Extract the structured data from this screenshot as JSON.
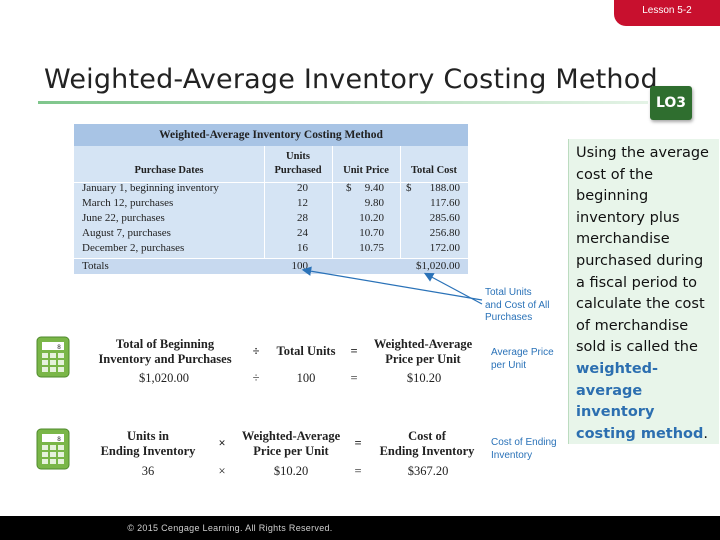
{
  "header": {
    "lesson_tab": "Lesson 5-2",
    "title": "Weighted-Average Inventory Costing Method",
    "lo_badge": "LO3"
  },
  "table": {
    "title": "Weighted-Average Inventory Costing Method",
    "headers": {
      "dates": "Purchase Dates",
      "units_line1": "Units",
      "units_line2": "Purchased",
      "price": "Unit Price",
      "total": "Total Cost"
    },
    "rows": [
      {
        "date": "January 1, beginning inventory",
        "units": "20",
        "dollar1": "$",
        "price": "9.40",
        "dollar2": "$",
        "total": "188.00"
      },
      {
        "date": "March 12, purchases",
        "units": "12",
        "dollar1": "",
        "price": "9.80",
        "dollar2": "",
        "total": "117.60"
      },
      {
        "date": "June 22, purchases",
        "units": "28",
        "dollar1": "",
        "price": "10.20",
        "dollar2": "",
        "total": "285.60"
      },
      {
        "date": "August 7, purchases",
        "units": "24",
        "dollar1": "",
        "price": "10.70",
        "dollar2": "",
        "total": "256.80"
      },
      {
        "date": "December 2, purchases",
        "units": "16",
        "dollar1": "",
        "price": "10.75",
        "dollar2": "",
        "total": "172.00"
      }
    ],
    "totals": {
      "label": "Totals",
      "units": "100",
      "total": "$1,020.00"
    }
  },
  "notes": {
    "total_units": [
      "Total Units",
      "and Cost of All",
      "Purchases"
    ],
    "avg_price": [
      "Average Price",
      "per Unit"
    ],
    "cost_ending": [
      "Cost of Ending",
      "Inventory"
    ]
  },
  "formula1": {
    "term1": [
      "Total of Beginning",
      "Inventory and Purchases"
    ],
    "op": "÷",
    "term2": "Total Units",
    "eq": "=",
    "result": [
      "Weighted-Average",
      "Price per Unit"
    ],
    "v1": "$1,020.00",
    "vop": "÷",
    "v2": "100",
    "veq": "=",
    "vres": "$10.20"
  },
  "formula2": {
    "term1": [
      "Units in",
      "Ending Inventory"
    ],
    "op": "×",
    "term2": [
      "Weighted-Average",
      "Price per Unit"
    ],
    "eq": "=",
    "result": [
      "Cost of",
      "Ending Inventory"
    ],
    "v1": "36",
    "vop": "×",
    "v2": "$10.20",
    "veq": "=",
    "vres": "$367.20"
  },
  "panel": {
    "text_before": "Using the average cost of the beginning inventory plus merchandise purchased during a fiscal period to calculate the cost of merchandise sold is called the ",
    "keyword": "weighted-average inventory costing method",
    "text_after": "."
  },
  "footer": {
    "copyright": "© 2015 Cengage Learning. All Rights Reserved."
  },
  "colors": {
    "tab": "#c8102e",
    "lo_badge": "#2f6e2f",
    "note_blue": "#2a72b8",
    "table_bg": "#d5e4f4",
    "table_title_bg": "#a8c4e5",
    "panel_bg": "#e8f5ea",
    "calc_green": "#7ab648"
  },
  "icons": {
    "calc1": "calculator-icon",
    "calc2": "calculator-icon"
  }
}
